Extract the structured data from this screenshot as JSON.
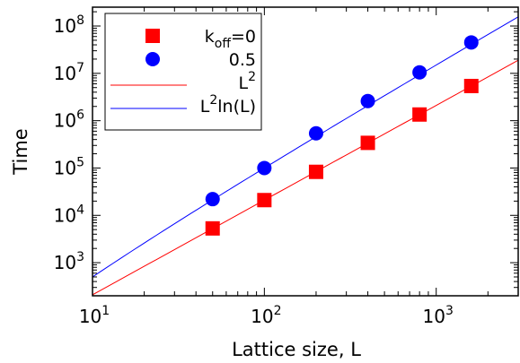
{
  "chart_data": {
    "type": "scatter",
    "xlabel": "Lattice size, L",
    "ylabel": "Time",
    "xscale": "log",
    "yscale": "log",
    "xlim": [
      10,
      3000
    ],
    "ylim": [
      200,
      250000000
    ],
    "x_ticks": [
      {
        "value": 10,
        "mantissa": "10",
        "exp": "1"
      },
      {
        "value": 100,
        "mantissa": "10",
        "exp": "2"
      },
      {
        "value": 1000,
        "mantissa": "10",
        "exp": "3"
      }
    ],
    "y_ticks": [
      {
        "value": 1000,
        "mantissa": "10",
        "exp": "3"
      },
      {
        "value": 10000,
        "mantissa": "10",
        "exp": "4"
      },
      {
        "value": 100000,
        "mantissa": "10",
        "exp": "5"
      },
      {
        "value": 1000000,
        "mantissa": "10",
        "exp": "6"
      },
      {
        "value": 10000000,
        "mantissa": "10",
        "exp": "7"
      },
      {
        "value": 100000000,
        "mantissa": "10",
        "exp": "8"
      }
    ],
    "series": [
      {
        "name": "k_off=0",
        "marker": "square",
        "color": "#ff0000",
        "x": [
          50,
          100,
          200,
          400,
          800,
          1600
        ],
        "y": [
          5300,
          21000,
          83000,
          340000,
          1350000,
          5400000
        ]
      },
      {
        "name": "0.5",
        "marker": "circle",
        "color": "#0000ff",
        "x": [
          50,
          100,
          200,
          400,
          800,
          1600
        ],
        "y": [
          22000,
          100000,
          540000,
          2600000,
          10500000,
          45000000
        ]
      }
    ],
    "fits": [
      {
        "name": "L^2",
        "model": "L^2",
        "coef": 2.1,
        "color": "#ff0000"
      },
      {
        "name": "L^2ln(L)",
        "model": "L^2 ln(L)",
        "coef": 2.17,
        "color": "#0000ff"
      }
    ],
    "legend": {
      "position": "top-left",
      "entries": [
        {
          "main": "k",
          "sub": "off",
          "rest": "=0"
        },
        {
          "main": "0.5"
        },
        {
          "main": "L",
          "sup": "2"
        },
        {
          "main": "L",
          "sup": "2",
          "rest": "ln(L)"
        }
      ]
    },
    "grid": false
  }
}
